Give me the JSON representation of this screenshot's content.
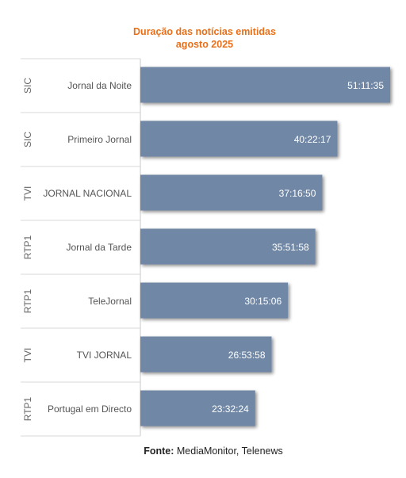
{
  "chart_data": {
    "type": "bar",
    "orientation": "horizontal",
    "title": "Duração das notícias emitidas",
    "subtitle": "agosto 2025",
    "categories": [
      {
        "group": "SIC",
        "program": "Jornal da Noite",
        "label": "51:11:35",
        "value_seconds": 184295
      },
      {
        "group": "SIC",
        "program": "Primeiro Jornal",
        "label": "40:22:17",
        "value_seconds": 145337
      },
      {
        "group": "TVI",
        "program": "JORNAL NACIONAL",
        "label": "37:16:50",
        "value_seconds": 134210
      },
      {
        "group": "RTP1",
        "program": "Jornal da Tarde",
        "label": "35:51:58",
        "value_seconds": 129118
      },
      {
        "group": "RTP1",
        "program": "TeleJornal",
        "label": "30:15:06",
        "value_seconds": 108906
      },
      {
        "group": "TVI",
        "program": "TVI JORNAL",
        "label": "26:53:58",
        "value_seconds": 96838
      },
      {
        "group": "RTP1",
        "program": "Portugal em Directo",
        "label": "23:32:24",
        "value_seconds": 84744
      }
    ],
    "bar_color": "#7088a6",
    "grid": false,
    "legend": "none"
  },
  "source": {
    "label": "Fonte:",
    "text": " MediaMonitor, Telenews"
  },
  "colors": {
    "title": "#e8701a",
    "bar": "#7088a6",
    "axis_text": "#555555",
    "separator": "#d8d8d8"
  }
}
